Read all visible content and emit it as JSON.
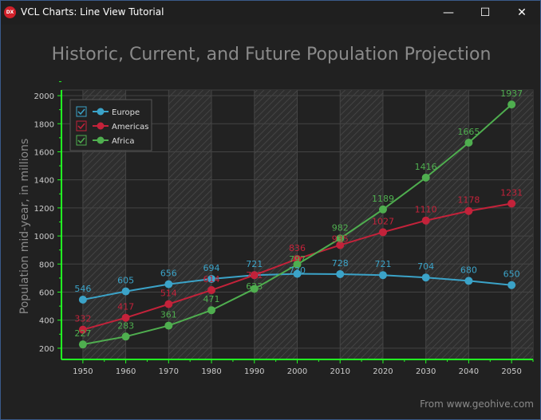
{
  "window": {
    "title": "VCL Charts: Line View Tutorial",
    "icon": "DX",
    "buttons": [
      "minimize",
      "maximize",
      "close"
    ]
  },
  "chart_data": {
    "type": "line",
    "title": "Historic, Current, and Future Population Projection",
    "ylabel": "Population mid-year, in millions",
    "xlabel": "",
    "footer": "From www.geohive.com",
    "x": [
      1950,
      1960,
      1970,
      1980,
      1990,
      2000,
      2010,
      2020,
      2030,
      2040,
      2050
    ],
    "xlim": [
      1945,
      2055
    ],
    "ylim": [
      120,
      2040
    ],
    "yticks": [
      200,
      400,
      600,
      800,
      1000,
      1200,
      1400,
      1600,
      1800,
      2000
    ],
    "legend_position": "top-left",
    "series": [
      {
        "name": "Europe",
        "color": "#3ba3c8",
        "checked": true,
        "values": [
          546,
          605,
          656,
          694,
          721,
          730,
          728,
          721,
          704,
          680,
          650
        ]
      },
      {
        "name": "Americas",
        "color": "#c3223a",
        "checked": true,
        "values": [
          332,
          417,
          514,
          614,
          721,
          836,
          935,
          1027,
          1110,
          1178,
          1231
        ]
      },
      {
        "name": "Africa",
        "color": "#4fae4f",
        "checked": true,
        "values": [
          227,
          283,
          361,
          471,
          623,
          797,
          982,
          1189,
          1416,
          1665,
          1937
        ]
      }
    ]
  }
}
